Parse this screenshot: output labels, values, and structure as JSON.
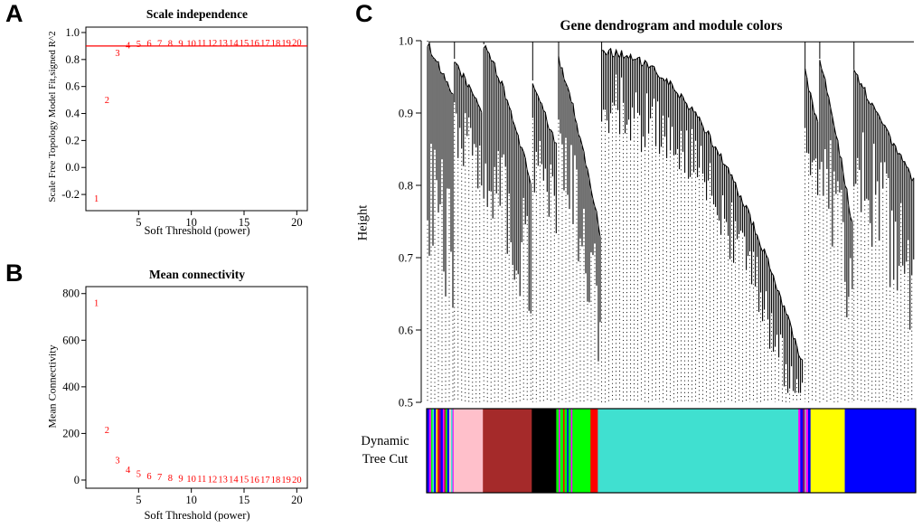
{
  "page": {
    "background": "#ffffff"
  },
  "panel_labels": {
    "A": "A",
    "B": "B",
    "C": "C"
  },
  "chart_data": [
    {
      "type": "scatter",
      "panel": "A",
      "title": "Scale independence",
      "xlabel": "Soft Threshold (power)",
      "ylabel": "Scale Free Topology Model Fit,signed R^2",
      "xlim": [
        0,
        21
      ],
      "ylim": [
        -0.32,
        1.04
      ],
      "xtick_values": [
        5,
        10,
        15,
        20
      ],
      "xtick_labels": [
        "5",
        "10",
        "15",
        "20"
      ],
      "ytick_values": [
        -0.2,
        0.0,
        0.2,
        0.4,
        0.6,
        0.8,
        1.0
      ],
      "ytick_labels": [
        "-0.2",
        "0.0",
        "0.2",
        "0.4",
        "0.6",
        "0.8",
        "1.0"
      ],
      "point_color": "#FF0000",
      "hline": 0.9,
      "hline_color": "#FF0000",
      "x": [
        1,
        2,
        3,
        4,
        5,
        6,
        7,
        8,
        9,
        10,
        11,
        12,
        13,
        14,
        15,
        16,
        17,
        18,
        19,
        20
      ],
      "y": [
        -0.23,
        0.5,
        0.85,
        0.905,
        0.915,
        0.918,
        0.92,
        0.92,
        0.921,
        0.921,
        0.922,
        0.922,
        0.922,
        0.923,
        0.923,
        0.923,
        0.924,
        0.924,
        0.924,
        0.925
      ]
    },
    {
      "type": "scatter",
      "panel": "B",
      "title": "Mean connectivity",
      "xlabel": "Soft Threshold (power)",
      "ylabel": "Mean Connectivity",
      "xlim": [
        0,
        21
      ],
      "ylim": [
        -35,
        830
      ],
      "xtick_values": [
        5,
        10,
        15,
        20
      ],
      "xtick_labels": [
        "5",
        "10",
        "15",
        "20"
      ],
      "ytick_values": [
        0,
        200,
        400,
        600,
        800
      ],
      "ytick_labels": [
        "0",
        "200",
        "400",
        "600",
        "800"
      ],
      "point_color": "#FF0000",
      "hline": null,
      "hline_color": "#FF0000",
      "x": [
        1,
        2,
        3,
        4,
        5,
        6,
        7,
        8,
        9,
        10,
        11,
        12,
        13,
        14,
        15,
        16,
        17,
        18,
        19,
        20
      ],
      "y": [
        760,
        215,
        85,
        45,
        28,
        18,
        13,
        10,
        8,
        6,
        5,
        4,
        4,
        3,
        3,
        2,
        2,
        2,
        1,
        1
      ]
    },
    {
      "type": "dendrogram",
      "panel": "C",
      "title": "Gene dendrogram and module colors",
      "ylabel": "Height",
      "ylim": [
        0.5,
        1.0
      ],
      "ytick_values": [
        0.5,
        0.6,
        0.7,
        0.8,
        0.9,
        1.0
      ],
      "ytick_labels": [
        "0.5",
        "0.6",
        "0.7",
        "0.8",
        "0.9",
        "1.0"
      ],
      "annotation_lines": [
        "Dynamic",
        "Tree Cut"
      ],
      "line_color": "#000000",
      "clusters": [
        {
          "x0": 0.0,
          "x1": 0.055,
          "h0": 1.0,
          "h1": 0.92,
          "curve": 1.0,
          "dmin": 0.1,
          "dmax": 0.3
        },
        {
          "x0": 0.055,
          "x1": 0.115,
          "h0": 0.975,
          "h1": 0.9,
          "curve": 1.0,
          "dmin": 0.04,
          "dmax": 0.13
        },
        {
          "x0": 0.115,
          "x1": 0.215,
          "h0": 0.995,
          "h1": 0.8,
          "curve": 1.3,
          "dmin": 0.05,
          "dmax": 0.22
        },
        {
          "x0": 0.215,
          "x1": 0.268,
          "h0": 0.945,
          "h1": 0.85,
          "curve": 1.0,
          "dmin": 0.04,
          "dmax": 0.15
        },
        {
          "x0": 0.268,
          "x1": 0.356,
          "h0": 0.975,
          "h1": 0.73,
          "curve": 1.25,
          "dmin": 0.04,
          "dmax": 0.2
        },
        {
          "x0": 0.356,
          "x1": 0.772,
          "h0": 0.985,
          "h1": 0.545,
          "curve": 2.1,
          "dmin": 0.03,
          "dmax": 0.12
        },
        {
          "x0": 0.772,
          "x1": 0.802,
          "h0": 0.96,
          "h1": 0.88,
          "curve": 1.0,
          "dmin": 0.03,
          "dmax": 0.12
        },
        {
          "x0": 0.802,
          "x1": 0.872,
          "h0": 0.975,
          "h1": 0.74,
          "curve": 1.2,
          "dmin": 0.04,
          "dmax": 0.18
        },
        {
          "x0": 0.872,
          "x1": 1.0,
          "h0": 0.96,
          "h1": 0.8,
          "curve": 1.0,
          "dmin": 0.05,
          "dmax": 0.22
        }
      ],
      "module_color_segments": [
        {
          "color": "#0000FF",
          "w": 0.5
        },
        {
          "color": "#FF00FF",
          "w": 0.4
        },
        {
          "color": "#00FF00",
          "w": 0.3
        },
        {
          "color": "#40E0D0",
          "w": 0.3
        },
        {
          "color": "#0000FF",
          "w": 0.4
        },
        {
          "color": "#FFFF00",
          "w": 0.3
        },
        {
          "color": "#FF0000",
          "w": 0.3
        },
        {
          "color": "#800080",
          "w": 0.4
        },
        {
          "color": "#0000FF",
          "w": 0.4
        },
        {
          "color": "#FF00FF",
          "w": 0.3
        },
        {
          "color": "#A52A2A",
          "w": 0.3
        },
        {
          "color": "#00FF00",
          "w": 0.3
        },
        {
          "color": "#0000FF",
          "w": 0.4
        },
        {
          "color": "#FFC0CB",
          "w": 0.4
        },
        {
          "color": "#40E0D0",
          "w": 0.3
        },
        {
          "color": "#FF00FF",
          "w": 0.2
        },
        {
          "color": "#FFC0CB",
          "w": 6.0
        },
        {
          "color": "#A52A2A",
          "w": 10.0
        },
        {
          "color": "#000000",
          "w": 5.0
        },
        {
          "color": "#00FF00",
          "w": 0.5
        },
        {
          "color": "#FF00FF",
          "w": 0.3
        },
        {
          "color": "#00FF00",
          "w": 0.6
        },
        {
          "color": "#FF0000",
          "w": 0.3
        },
        {
          "color": "#00FF00",
          "w": 0.5
        },
        {
          "color": "#0000FF",
          "w": 0.3
        },
        {
          "color": "#00FF00",
          "w": 0.5
        },
        {
          "color": "#FF00FF",
          "w": 0.3
        },
        {
          "color": "#00FF00",
          "w": 0.7
        },
        {
          "color": "#00FF00",
          "w": 3.0
        },
        {
          "color": "#FF0000",
          "w": 1.5
        },
        {
          "color": "#40E0D0",
          "w": 41.0
        },
        {
          "color": "#FF00FF",
          "w": 0.4
        },
        {
          "color": "#0000FF",
          "w": 0.5
        },
        {
          "color": "#800080",
          "w": 0.4
        },
        {
          "color": "#A9A9A9",
          "w": 0.3
        },
        {
          "color": "#FF00FF",
          "w": 0.4
        },
        {
          "color": "#0000FF",
          "w": 0.5
        },
        {
          "color": "#FFFF00",
          "w": 7.0
        },
        {
          "color": "#0000FF",
          "w": 14.5
        }
      ]
    }
  ]
}
